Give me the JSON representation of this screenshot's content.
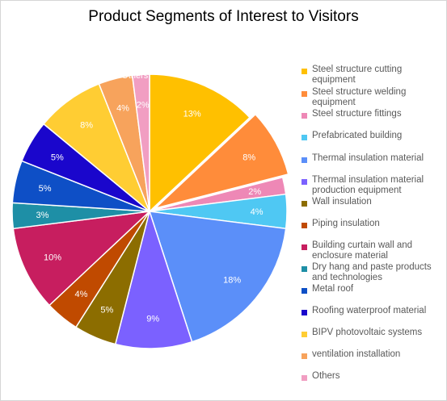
{
  "chart_data": {
    "type": "pie",
    "title": "Product Segments of Interest to Visitors",
    "legend_position": "right",
    "start_angle_deg": 0,
    "exploded_slice": "Steel structure welding equipment",
    "slices": [
      {
        "label": "Steel structure cutting equipment",
        "value": 13,
        "display": "13%",
        "color": "#ffc000"
      },
      {
        "label": "Steel structure welding equipment",
        "value": 8,
        "display": "8%",
        "color": "#ff8c3a"
      },
      {
        "label": "Steel structure fittings",
        "value": 2,
        "display": "2%",
        "color": "#ee88b6"
      },
      {
        "label": "Prefabricated building",
        "value": 4,
        "display": "4%",
        "color": "#4fc8f3"
      },
      {
        "label": "Thermal insulation material",
        "value": 18,
        "display": "18%",
        "color": "#5b8ff9"
      },
      {
        "label": "Thermal insulation material production equipment",
        "value": 9,
        "display": "9%",
        "color": "#7b61ff"
      },
      {
        "label": "Wall insulation",
        "value": 5,
        "display": "5%",
        "color": "#8c6d00"
      },
      {
        "label": "Piping insulation",
        "value": 4,
        "display": "4%",
        "color": "#c04a00"
      },
      {
        "label": "Building curtain wall and enclosure material",
        "value": 10,
        "display": "10%",
        "color": "#c71e5f"
      },
      {
        "label": "Dry hang and paste products and technologies",
        "value": 3,
        "display": "3%",
        "color": "#1e8fa6"
      },
      {
        "label": "Metal roof",
        "value": 5,
        "display": "5%",
        "color": "#0e4fc6"
      },
      {
        "label": "Roofing waterproof material",
        "value": 5,
        "display": "5%",
        "color": "#1a06cc"
      },
      {
        "label": "BIPV photovoltaic systems",
        "value": 8,
        "display": "8%",
        "color": "#ffcd33"
      },
      {
        "label": "ventilation installation",
        "value": 4,
        "display": "4%",
        "color": "#f7a35c"
      },
      {
        "label": "Others",
        "value": 2,
        "display": "2%",
        "color": "#f19ec2"
      }
    ],
    "outside_labels": [
      "Others"
    ]
  }
}
